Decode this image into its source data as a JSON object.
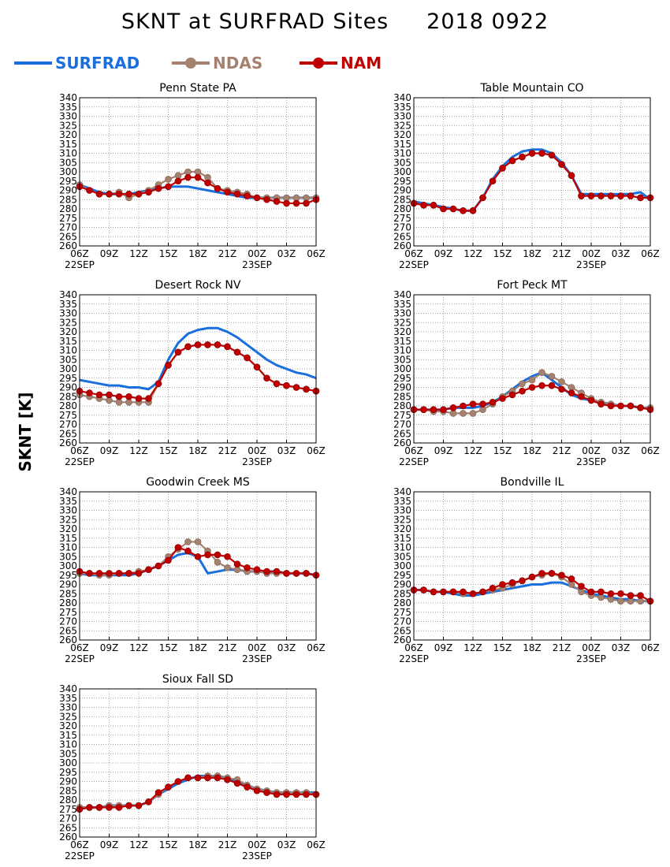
{
  "title": "SKNT at SURFRAD Sites     2018 0922",
  "ylabel": "SKNT [K]",
  "legend": [
    {
      "name": "SURFRAD",
      "color": "#1a6fdf",
      "marker": false
    },
    {
      "name": "NDAS",
      "color": "#a58270",
      "marker": true
    },
    {
      "name": "NAM",
      "color": "#c00000",
      "marker": true
    }
  ],
  "colors": {
    "SURFRAD": "#1a6fdf",
    "NDAS": "#a58270",
    "NAM": "#c00000",
    "grid": "#888888"
  },
  "chart_data": [
    {
      "type": "line",
      "title": "Penn State PA",
      "x_ticks": [
        "06Z",
        "09Z",
        "12Z",
        "15Z",
        "18Z",
        "21Z",
        "00Z",
        "03Z",
        "06Z"
      ],
      "date_labels": [
        {
          "at": 0,
          "text": "22SEP"
        },
        {
          "at": 6,
          "text": "23SEP"
        }
      ],
      "ylim": [
        260,
        340
      ],
      "yticks_step": 5,
      "grid": true,
      "x": [
        0,
        1,
        2,
        3,
        4,
        5,
        6,
        7,
        8,
        9,
        10,
        11,
        12,
        13,
        14,
        15,
        16,
        17,
        18,
        19,
        20,
        21,
        22,
        23,
        24
      ],
      "series": [
        {
          "name": "SURFRAD",
          "values": [
            293,
            291,
            289,
            288,
            288,
            288,
            289,
            290,
            291,
            292,
            292,
            292,
            291,
            290,
            289,
            288,
            287,
            286,
            286,
            286,
            286,
            286,
            286,
            286,
            286
          ]
        },
        {
          "name": "NDAS",
          "values": [
            293,
            290,
            288,
            288,
            289,
            286,
            288,
            290,
            293,
            296,
            298,
            300,
            300,
            297,
            291,
            290,
            289,
            288,
            286,
            286,
            286,
            286,
            286,
            286,
            286
          ]
        },
        {
          "name": "NAM",
          "values": [
            292,
            290,
            288,
            288,
            288,
            288,
            288,
            289,
            291,
            292,
            295,
            297,
            297,
            294,
            291,
            289,
            288,
            287,
            286,
            285,
            284,
            283,
            283,
            283,
            285
          ]
        }
      ]
    },
    {
      "type": "line",
      "title": "Table Mountain CO",
      "x_ticks": [
        "06Z",
        "09Z",
        "12Z",
        "15Z",
        "18Z",
        "21Z",
        "00Z",
        "03Z",
        "06Z"
      ],
      "date_labels": [
        {
          "at": 0,
          "text": "22SEP"
        },
        {
          "at": 6,
          "text": "23SEP"
        }
      ],
      "ylim": [
        260,
        340
      ],
      "yticks_step": 5,
      "grid": true,
      "x": [
        0,
        1,
        2,
        3,
        4,
        5,
        6,
        7,
        8,
        9,
        10,
        11,
        12,
        13,
        14,
        15,
        16,
        17,
        18,
        19,
        20,
        21,
        22,
        23,
        24
      ],
      "series": [
        {
          "name": "SURFRAD",
          "values": [
            284,
            283,
            282,
            281,
            280,
            279,
            279,
            286,
            296,
            303,
            308,
            311,
            312,
            312,
            310,
            305,
            298,
            288,
            288,
            288,
            288,
            288,
            288,
            289,
            285
          ]
        },
        {
          "name": "NDAS",
          "values": [
            283,
            282,
            282,
            280,
            280,
            279,
            279,
            286,
            295,
            302,
            306,
            308,
            310,
            310,
            309,
            304,
            298,
            287,
            287,
            287,
            287,
            287,
            287,
            286,
            286
          ]
        },
        {
          "name": "NAM",
          "values": [
            283,
            282,
            282,
            280,
            280,
            279,
            279,
            286,
            295,
            302,
            306,
            308,
            310,
            310,
            309,
            304,
            298,
            287,
            287,
            287,
            287,
            287,
            287,
            286,
            286
          ]
        }
      ]
    },
    {
      "type": "line",
      "title": "Desert Rock NV",
      "x_ticks": [
        "06Z",
        "09Z",
        "12Z",
        "15Z",
        "18Z",
        "21Z",
        "00Z",
        "03Z",
        "06Z"
      ],
      "date_labels": [
        {
          "at": 0,
          "text": "22SEP"
        },
        {
          "at": 6,
          "text": "23SEP"
        }
      ],
      "ylim": [
        260,
        340
      ],
      "yticks_step": 5,
      "grid": true,
      "x": [
        0,
        1,
        2,
        3,
        4,
        5,
        6,
        7,
        8,
        9,
        10,
        11,
        12,
        13,
        14,
        15,
        16,
        17,
        18,
        19,
        20,
        21,
        22,
        23,
        24
      ],
      "series": [
        {
          "name": "SURFRAD",
          "values": [
            294,
            293,
            292,
            291,
            291,
            290,
            290,
            289,
            293,
            305,
            314,
            319,
            321,
            322,
            322,
            320,
            317,
            313,
            309,
            305,
            302,
            300,
            298,
            297,
            295
          ]
        },
        {
          "name": "NDAS",
          "values": [
            286,
            285,
            284,
            283,
            282,
            282,
            282,
            282,
            292,
            302,
            309,
            312,
            313,
            313,
            313,
            312,
            309,
            306,
            301,
            295,
            292,
            291,
            290,
            289,
            288
          ]
        },
        {
          "name": "NAM",
          "values": [
            288,
            287,
            286,
            286,
            285,
            285,
            284,
            284,
            292,
            302,
            309,
            312,
            313,
            313,
            313,
            312,
            309,
            306,
            301,
            295,
            292,
            291,
            290,
            289,
            288
          ]
        }
      ]
    },
    {
      "type": "line",
      "title": "Fort Peck MT",
      "x_ticks": [
        "06Z",
        "09Z",
        "12Z",
        "15Z",
        "18Z",
        "21Z",
        "00Z",
        "03Z",
        "06Z"
      ],
      "date_labels": [
        {
          "at": 0,
          "text": "22SEP"
        },
        {
          "at": 6,
          "text": "23SEP"
        }
      ],
      "ylim": [
        260,
        340
      ],
      "yticks_step": 5,
      "grid": true,
      "x": [
        0,
        1,
        2,
        3,
        4,
        5,
        6,
        7,
        8,
        9,
        10,
        11,
        12,
        13,
        14,
        15,
        16,
        17,
        18,
        19,
        20,
        21,
        22,
        23,
        24
      ],
      "series": [
        {
          "name": "SURFRAD",
          "values": [
            278,
            278,
            278,
            278,
            279,
            279,
            279,
            280,
            282,
            285,
            289,
            293,
            296,
            298,
            294,
            290,
            286,
            284,
            283,
            282,
            281,
            280,
            280,
            279,
            279
          ]
        },
        {
          "name": "NDAS",
          "values": [
            278,
            278,
            277,
            277,
            276,
            276,
            276,
            278,
            281,
            285,
            288,
            292,
            294,
            298,
            296,
            293,
            290,
            287,
            284,
            282,
            281,
            280,
            280,
            279,
            279
          ]
        },
        {
          "name": "NAM",
          "values": [
            278,
            278,
            278,
            278,
            279,
            280,
            281,
            281,
            282,
            284,
            286,
            288,
            290,
            291,
            291,
            289,
            287,
            285,
            283,
            281,
            280,
            280,
            280,
            279,
            278
          ]
        }
      ]
    },
    {
      "type": "line",
      "title": "Goodwin Creek MS",
      "x_ticks": [
        "06Z",
        "09Z",
        "12Z",
        "15Z",
        "18Z",
        "21Z",
        "00Z",
        "03Z",
        "06Z"
      ],
      "date_labels": [
        {
          "at": 0,
          "text": "22SEP"
        },
        {
          "at": 6,
          "text": "23SEP"
        }
      ],
      "ylim": [
        260,
        340
      ],
      "yticks_step": 5,
      "grid": true,
      "x": [
        0,
        1,
        2,
        3,
        4,
        5,
        6,
        7,
        8,
        9,
        10,
        11,
        12,
        13,
        14,
        15,
        16,
        17,
        18,
        19,
        20,
        21,
        22,
        23,
        24
      ],
      "series": [
        {
          "name": "SURFRAD",
          "values": [
            296,
            295,
            295,
            295,
            295,
            295,
            296,
            298,
            300,
            303,
            306,
            307,
            305,
            296,
            297,
            298,
            298,
            297,
            297,
            297,
            297,
            296,
            296,
            296,
            295
          ]
        },
        {
          "name": "NDAS",
          "values": [
            296,
            296,
            295,
            295,
            296,
            296,
            297,
            298,
            300,
            305,
            309,
            313,
            313,
            308,
            302,
            299,
            298,
            297,
            297,
            296,
            296,
            296,
            296,
            296,
            295
          ]
        },
        {
          "name": "NAM",
          "values": [
            297,
            296,
            296,
            296,
            296,
            296,
            296,
            298,
            300,
            303,
            310,
            308,
            305,
            306,
            306,
            305,
            301,
            299,
            298,
            297,
            297,
            296,
            296,
            296,
            295
          ]
        }
      ]
    },
    {
      "type": "line",
      "title": "Bondville IL",
      "x_ticks": [
        "06Z",
        "09Z",
        "12Z",
        "15Z",
        "18Z",
        "21Z",
        "00Z",
        "03Z",
        "06Z"
      ],
      "date_labels": [
        {
          "at": 0,
          "text": "22SEP"
        },
        {
          "at": 6,
          "text": "23SEP"
        }
      ],
      "ylim": [
        260,
        340
      ],
      "yticks_step": 5,
      "grid": true,
      "x": [
        0,
        1,
        2,
        3,
        4,
        5,
        6,
        7,
        8,
        9,
        10,
        11,
        12,
        13,
        14,
        15,
        16,
        17,
        18,
        19,
        20,
        21,
        22,
        23,
        24
      ],
      "series": [
        {
          "name": "SURFRAD",
          "values": [
            287,
            287,
            286,
            286,
            285,
            284,
            284,
            285,
            286,
            287,
            288,
            289,
            290,
            290,
            291,
            291,
            289,
            287,
            285,
            284,
            283,
            282,
            282,
            281,
            281
          ]
        },
        {
          "name": "NDAS",
          "values": [
            287,
            287,
            286,
            286,
            286,
            285,
            285,
            286,
            287,
            288,
            290,
            292,
            294,
            295,
            296,
            294,
            290,
            286,
            284,
            283,
            282,
            281,
            281,
            281,
            281
          ]
        },
        {
          "name": "NAM",
          "values": [
            287,
            287,
            286,
            286,
            286,
            286,
            285,
            286,
            288,
            290,
            291,
            292,
            294,
            296,
            296,
            295,
            293,
            289,
            286,
            286,
            285,
            285,
            284,
            284,
            281
          ]
        }
      ]
    },
    {
      "type": "line",
      "title": "Sioux Fall SD",
      "x_ticks": [
        "06Z",
        "09Z",
        "12Z",
        "15Z",
        "18Z",
        "21Z",
        "00Z",
        "03Z",
        "06Z"
      ],
      "date_labels": [
        {
          "at": 0,
          "text": "22SEP"
        },
        {
          "at": 6,
          "text": "23SEP"
        }
      ],
      "ylim": [
        260,
        340
      ],
      "yticks_step": 5,
      "grid": true,
      "x": [
        0,
        1,
        2,
        3,
        4,
        5,
        6,
        7,
        8,
        9,
        10,
        11,
        12,
        13,
        14,
        15,
        16,
        17,
        18,
        19,
        20,
        21,
        22,
        23,
        24
      ],
      "series": [
        {
          "name": "SURFRAD",
          "values": [
            276,
            276,
            276,
            277,
            277,
            277,
            277,
            279,
            283,
            286,
            289,
            291,
            293,
            293,
            293,
            292,
            290,
            288,
            286,
            285,
            284,
            284,
            284,
            284,
            284
          ]
        },
        {
          "name": "NDAS",
          "values": [
            276,
            276,
            276,
            277,
            277,
            277,
            277,
            279,
            283,
            287,
            290,
            292,
            292,
            293,
            293,
            292,
            291,
            288,
            286,
            285,
            284,
            284,
            284,
            284,
            283
          ]
        },
        {
          "name": "NAM",
          "values": [
            275,
            276,
            276,
            276,
            276,
            277,
            277,
            279,
            284,
            287,
            290,
            292,
            292,
            292,
            292,
            291,
            289,
            287,
            285,
            284,
            283,
            283,
            283,
            283,
            283
          ]
        }
      ]
    }
  ]
}
